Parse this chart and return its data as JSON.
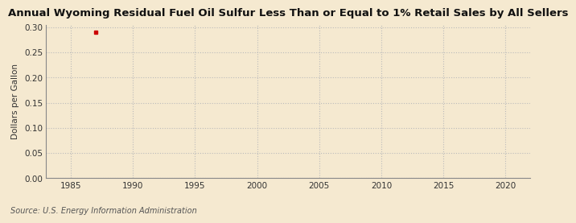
{
  "title": "Annual Wyoming Residual Fuel Oil Sulfur Less Than or Equal to 1% Retail Sales by All Sellers",
  "ylabel": "Dollars per Gallon",
  "source_text": "Source: U.S. Energy Information Administration",
  "background_color": "#f5e9d0",
  "plot_bg_color": "#f5e9d0",
  "data_x": [
    1987
  ],
  "data_y": [
    0.29
  ],
  "marker_color": "#cc0000",
  "marker_size": 3.5,
  "xlim": [
    1983,
    2022
  ],
  "ylim": [
    0.0,
    0.305
  ],
  "xticks": [
    1985,
    1990,
    1995,
    2000,
    2005,
    2010,
    2015,
    2020
  ],
  "yticks": [
    0.0,
    0.05,
    0.1,
    0.15,
    0.2,
    0.25,
    0.3
  ],
  "grid_color": "#bbbbbb",
  "title_fontsize": 9.5,
  "label_fontsize": 7.5,
  "tick_fontsize": 7.5,
  "source_fontsize": 7.0
}
